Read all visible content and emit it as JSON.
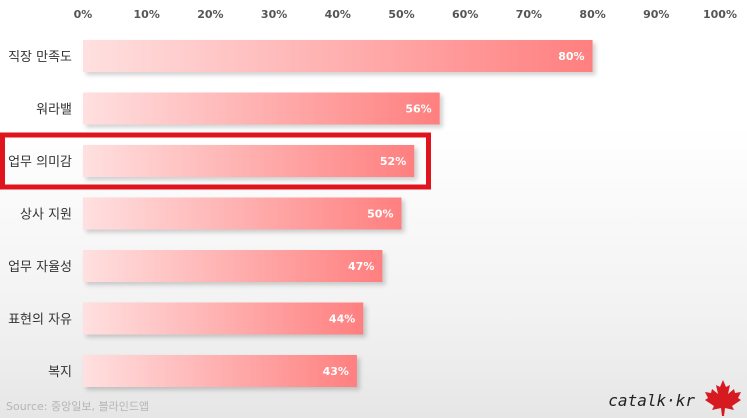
{
  "chart_data": {
    "type": "bar",
    "orientation": "horizontal",
    "categories": [
      "직장 만족도",
      "워라밸",
      "업무 의미감",
      "상사 지원",
      "업무 자율성",
      "표현의 자유",
      "복지"
    ],
    "values": [
      80,
      56,
      52,
      50,
      47,
      44,
      43
    ],
    "value_labels": [
      "80%",
      "56%",
      "52%",
      "50%",
      "47%",
      "44%",
      "43%"
    ],
    "x_ticks": [
      "0%",
      "10%",
      "20%",
      "30%",
      "40%",
      "50%",
      "60%",
      "70%",
      "80%",
      "90%",
      "100%"
    ],
    "xlim": [
      0,
      100
    ],
    "grid": false,
    "highlighted_category": "업무 의미감"
  },
  "source": "Source: 중앙일보, 블라인드앱",
  "brand": "catalk·kr",
  "colors": {
    "bar_start": "#ffe0e0",
    "bar_end": "#ff7f7f",
    "highlight": "#e0141c",
    "leaf": "#d71920"
  },
  "icons": {
    "brand_mark": "maple-leaf-icon"
  }
}
